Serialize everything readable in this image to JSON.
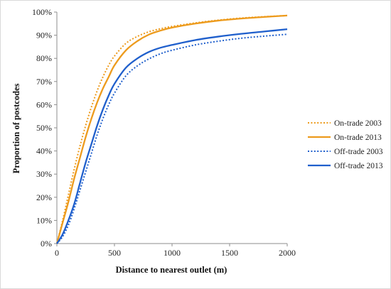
{
  "chart_data": {
    "type": "line",
    "title": "",
    "xlabel": "Distance to nearest outlet (m)",
    "ylabel": "Proportion of postcodes",
    "xlim": [
      0,
      2000
    ],
    "ylim": [
      0,
      100
    ],
    "x_ticks": [
      "0",
      "500",
      "1000",
      "1500",
      "2000"
    ],
    "y_ticks": [
      "0%",
      "10%",
      "20%",
      "30%",
      "40%",
      "50%",
      "60%",
      "70%",
      "80%",
      "90%",
      "100%"
    ],
    "grid": false,
    "legend_position": "right",
    "x": [
      0,
      50,
      100,
      150,
      200,
      250,
      300,
      350,
      400,
      450,
      500,
      600,
      700,
      800,
      900,
      1000,
      1200,
      1400,
      1600,
      1800,
      2000
    ],
    "series": [
      {
        "name": "On-trade 2003",
        "color": "#ED9B1D",
        "dash": "dotted",
        "values": [
          0,
          10,
          21,
          32,
          42,
          51,
          59,
          66,
          72,
          77,
          81,
          86.5,
          89.5,
          91.5,
          92.8,
          93.8,
          95.3,
          96.5,
          97.4,
          98,
          98.5
        ]
      },
      {
        "name": "On-trade 2013",
        "color": "#ED9B1D",
        "dash": "solid",
        "values": [
          0,
          9,
          18,
          28,
          37,
          46,
          54,
          61,
          67,
          72,
          77,
          83.5,
          87.5,
          90.3,
          92,
          93.3,
          95,
          96.3,
          97.2,
          97.9,
          98.5
        ]
      },
      {
        "name": "Off-trade 2003",
        "color": "#1F5FCC",
        "dash": "dotted",
        "values": [
          0,
          3,
          8,
          15,
          23,
          31,
          39,
          47,
          54,
          60,
          65,
          72.5,
          76.8,
          79.8,
          82,
          83.5,
          85.8,
          87.4,
          88.7,
          89.6,
          90.4
        ]
      },
      {
        "name": "Off-trade 2013",
        "color": "#1F5FCC",
        "dash": "solid",
        "values": [
          0,
          4,
          10,
          17,
          26,
          35,
          43,
          51,
          58,
          64,
          69,
          76,
          80,
          82.8,
          84.6,
          85.8,
          87.9,
          89.4,
          90.6,
          91.6,
          92.6
        ]
      }
    ]
  }
}
